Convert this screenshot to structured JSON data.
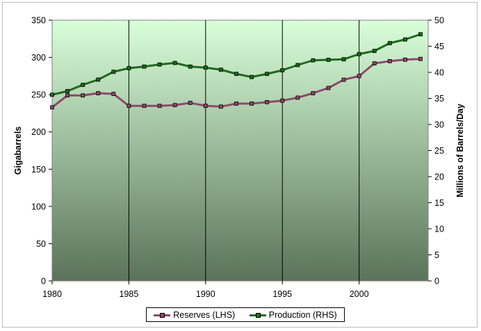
{
  "chart_data": {
    "type": "line",
    "xlabel": "",
    "ylabel_left": "Gigabarrels",
    "ylabel_right": "Millions of Barrels/Day",
    "xlim": [
      1980,
      2004.5
    ],
    "ylim_left": [
      0,
      350
    ],
    "ylim_right": [
      0,
      50
    ],
    "x_ticks": [
      "1980",
      "1985",
      "1990",
      "1995",
      "2000"
    ],
    "y_ticks_left": [
      "0",
      "50",
      "100",
      "150",
      "200",
      "250",
      "300",
      "350"
    ],
    "y_ticks_right": [
      "0",
      "5",
      "10",
      "15",
      "20",
      "25",
      "30",
      "35",
      "40",
      "45",
      "50"
    ],
    "grid": "vertical",
    "legend_position": "bottom",
    "background_gradient": [
      "#d9ffd9",
      "#5a735a"
    ],
    "series": [
      {
        "name": "Reserves (LHS)",
        "axis": "left",
        "color": "#8b4a6b",
        "x": [
          1980,
          1981,
          1982,
          1983,
          1984,
          1985,
          1986,
          1987,
          1988,
          1989,
          1990,
          1991,
          1992,
          1993,
          1994,
          1995,
          1996,
          1997,
          1998,
          1999,
          2000,
          2001,
          2002,
          2003,
          2004
        ],
        "values": [
          233,
          249,
          249,
          252,
          251,
          235,
          235,
          235,
          236,
          239,
          235,
          234,
          238,
          238,
          240,
          242,
          246,
          252,
          259,
          270,
          275,
          292,
          295,
          297,
          298
        ]
      },
      {
        "name": "Production (RHS)",
        "axis": "right",
        "color": "#1e6b1e",
        "x": [
          1980,
          1981,
          1982,
          1983,
          1984,
          1985,
          1986,
          1987,
          1988,
          1989,
          1990,
          1991,
          1992,
          1993,
          1994,
          1995,
          1996,
          1997,
          1998,
          1999,
          2000,
          2001,
          2002,
          2003,
          2004
        ],
        "values": [
          35.7,
          36.4,
          37.6,
          38.6,
          40.1,
          40.8,
          41.1,
          41.5,
          41.8,
          41.1,
          40.9,
          40.5,
          39.7,
          39.1,
          39.7,
          40.4,
          41.4,
          42.3,
          42.4,
          42.5,
          43.5,
          44.1,
          45.6,
          46.3,
          47.3
        ]
      }
    ]
  }
}
